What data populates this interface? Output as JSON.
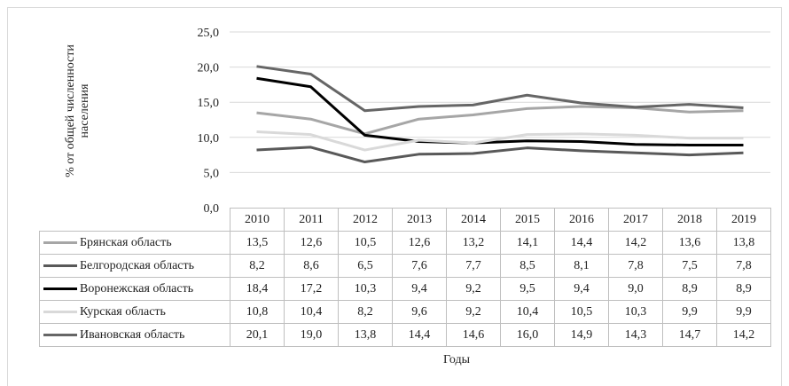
{
  "chart_data": {
    "type": "line",
    "ylabel": "% от общей численности населения",
    "xlabel": "Годы",
    "ylim": [
      0,
      25
    ],
    "yticks": [
      "0,0",
      "5,0",
      "10,0",
      "15,0",
      "20,0",
      "25,0"
    ],
    "categories": [
      "2010",
      "2011",
      "2012",
      "2013",
      "2014",
      "2015",
      "2016",
      "2017",
      "2018",
      "2019"
    ],
    "grid": "horizontal",
    "legend": "table-below",
    "series": [
      {
        "name": "Брянская область",
        "color": "#a6a6a6",
        "values": [
          13.5,
          12.6,
          10.5,
          12.6,
          13.2,
          14.1,
          14.4,
          14.2,
          13.6,
          13.8
        ],
        "labels": [
          "13,5",
          "12,6",
          "10,5",
          "12,6",
          "13,2",
          "14,1",
          "14,4",
          "14,2",
          "13,6",
          "13,8"
        ]
      },
      {
        "name": "Белгородская область",
        "color": "#595959",
        "values": [
          8.2,
          8.6,
          6.5,
          7.6,
          7.7,
          8.5,
          8.1,
          7.8,
          7.5,
          7.8
        ],
        "labels": [
          "8,2",
          "8,6",
          "6,5",
          "7,6",
          "7,7",
          "8,5",
          "8,1",
          "7,8",
          "7,5",
          "7,8"
        ]
      },
      {
        "name": "Воронежская область",
        "color": "#000000",
        "values": [
          18.4,
          17.2,
          10.3,
          9.4,
          9.2,
          9.5,
          9.4,
          9.0,
          8.9,
          8.9
        ],
        "labels": [
          "18,4",
          "17,2",
          "10,3",
          "9,4",
          "9,2",
          "9,5",
          "9,4",
          "9,0",
          "8,9",
          "8,9"
        ]
      },
      {
        "name": "Курская область",
        "color": "#d9d9d9",
        "values": [
          10.8,
          10.4,
          8.2,
          9.6,
          9.2,
          10.4,
          10.5,
          10.3,
          9.9,
          9.9
        ],
        "labels": [
          "10,8",
          "10,4",
          "8,2",
          "9,6",
          "9,2",
          "10,4",
          "10,5",
          "10,3",
          "9,9",
          "9,9"
        ]
      },
      {
        "name": "Ивановская область",
        "color": "#666666",
        "values": [
          20.1,
          19.0,
          13.8,
          14.4,
          14.6,
          16.0,
          14.9,
          14.3,
          14.7,
          14.2
        ],
        "labels": [
          "20,1",
          "19,0",
          "13,8",
          "14,4",
          "14,6",
          "16,0",
          "14,9",
          "14,3",
          "14,7",
          "14,2"
        ]
      }
    ]
  }
}
